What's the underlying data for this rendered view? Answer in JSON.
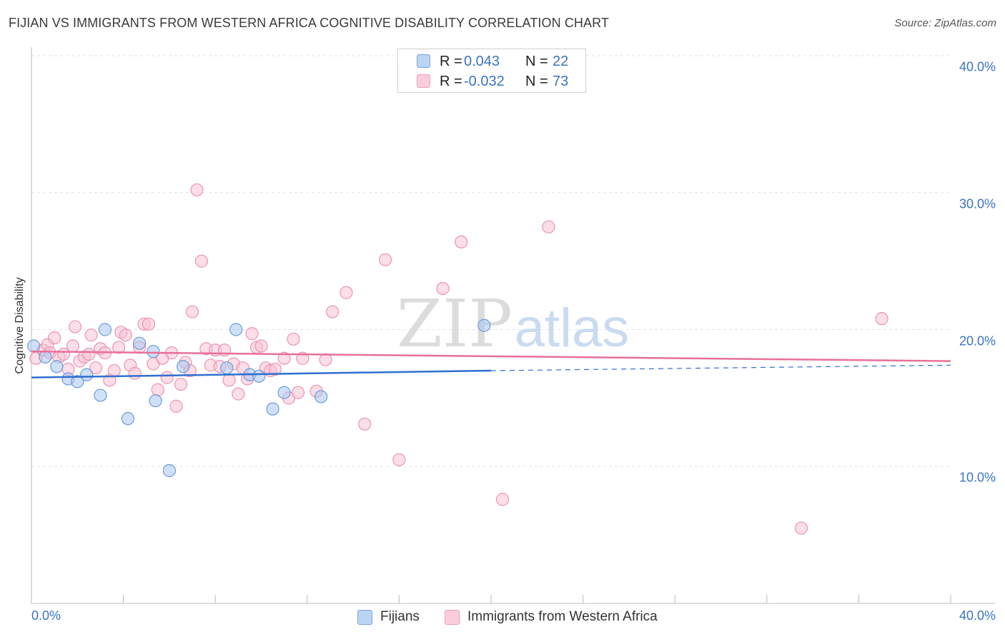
{
  "header": {
    "title": "FIJIAN VS IMMIGRANTS FROM WESTERN AFRICA COGNITIVE DISABILITY CORRELATION CHART",
    "source_prefix": "Source:",
    "source_value": "ZipAtlas.com"
  },
  "watermark": {
    "zip": "ZIP",
    "atlas": "atlas"
  },
  "legend_top": [
    {
      "r_label": "R =",
      "r_value": "0.043",
      "n_label": "N =",
      "n_value": "22"
    },
    {
      "r_label": "R =",
      "r_value": "-0.032",
      "n_label": "N =",
      "n_value": "73"
    }
  ],
  "legend_bottom": [
    {
      "label": "Fijians"
    },
    {
      "label": "Immigrants from Western Africa"
    }
  ],
  "colors": {
    "fijians_fill": "#a9c8f0",
    "fijians_stroke": "#6b9ad8",
    "fijians_line": "#2f6fd0",
    "wa_fill": "#f7c3d4",
    "wa_stroke": "#ec94b2",
    "wa_line": "#e8709a",
    "tick_text": "#3a74c4",
    "grid": "#e3e3e3"
  },
  "chart_data": {
    "type": "scatter",
    "title": "FIJIAN VS IMMIGRANTS FROM WESTERN AFRICA COGNITIVE DISABILITY CORRELATION CHART",
    "xlabel": "",
    "ylabel": "Cognitive Disability",
    "xlim": [
      0,
      40
    ],
    "ylim": [
      0,
      40
    ],
    "x_tick_labels": [
      "0.0%",
      "40.0%"
    ],
    "y_ticks": [
      10,
      20,
      30,
      40
    ],
    "y_tick_labels": [
      "10.0%",
      "20.0%",
      "30.0%",
      "40.0%"
    ],
    "grid": true,
    "legend_position": "bottom",
    "series": [
      {
        "name": "Fijians",
        "r": 0.043,
        "n": 22,
        "trend": {
          "x0": 0,
          "y0": 16.5,
          "x1": 20,
          "y1": 17.0,
          "dashed_to_x": 40,
          "dashed_to_y": 17.4
        },
        "points": [
          [
            0.1,
            18.8
          ],
          [
            0.6,
            18.0
          ],
          [
            1.1,
            17.3
          ],
          [
            1.6,
            16.4
          ],
          [
            2.0,
            16.2
          ],
          [
            2.4,
            16.7
          ],
          [
            3.0,
            15.2
          ],
          [
            3.2,
            20.0
          ],
          [
            4.2,
            13.5
          ],
          [
            4.7,
            19.0
          ],
          [
            5.3,
            18.4
          ],
          [
            5.4,
            14.8
          ],
          [
            6.0,
            9.7
          ],
          [
            6.6,
            17.3
          ],
          [
            8.5,
            17.2
          ],
          [
            8.9,
            20.0
          ],
          [
            9.5,
            16.7
          ],
          [
            9.9,
            16.6
          ],
          [
            10.5,
            14.2
          ],
          [
            11.0,
            15.4
          ],
          [
            12.6,
            15.1
          ],
          [
            19.7,
            20.3
          ]
        ]
      },
      {
        "name": "Immigrants from Western Africa",
        "r": -0.032,
        "n": 73,
        "trend": {
          "x0": 0,
          "y0": 18.4,
          "x1": 40,
          "y1": 17.7
        },
        "points": [
          [
            0.2,
            17.9
          ],
          [
            0.5,
            18.5
          ],
          [
            0.7,
            18.9
          ],
          [
            0.8,
            18.3
          ],
          [
            1.0,
            19.4
          ],
          [
            1.2,
            18.0
          ],
          [
            1.4,
            18.2
          ],
          [
            1.6,
            17.1
          ],
          [
            1.8,
            18.8
          ],
          [
            1.9,
            20.2
          ],
          [
            2.1,
            17.7
          ],
          [
            2.3,
            18.0
          ],
          [
            2.5,
            18.2
          ],
          [
            2.6,
            19.6
          ],
          [
            2.8,
            17.2
          ],
          [
            3.0,
            18.6
          ],
          [
            3.2,
            18.3
          ],
          [
            3.4,
            16.3
          ],
          [
            3.6,
            17.0
          ],
          [
            3.8,
            18.7
          ],
          [
            3.9,
            19.8
          ],
          [
            4.1,
            19.6
          ],
          [
            4.3,
            17.4
          ],
          [
            4.5,
            16.8
          ],
          [
            4.7,
            18.7
          ],
          [
            4.9,
            20.4
          ],
          [
            5.1,
            20.4
          ],
          [
            5.3,
            17.5
          ],
          [
            5.5,
            15.6
          ],
          [
            5.7,
            17.9
          ],
          [
            5.9,
            16.5
          ],
          [
            6.1,
            18.3
          ],
          [
            6.3,
            14.4
          ],
          [
            6.5,
            16.0
          ],
          [
            6.7,
            17.6
          ],
          [
            6.9,
            17.0
          ],
          [
            7.0,
            21.3
          ],
          [
            7.2,
            30.2
          ],
          [
            7.4,
            25.0
          ],
          [
            7.6,
            18.6
          ],
          [
            7.8,
            17.4
          ],
          [
            8.0,
            18.5
          ],
          [
            8.2,
            17.3
          ],
          [
            8.4,
            18.5
          ],
          [
            8.6,
            16.3
          ],
          [
            8.8,
            17.5
          ],
          [
            9.0,
            15.3
          ],
          [
            9.2,
            17.2
          ],
          [
            9.4,
            16.4
          ],
          [
            9.6,
            19.7
          ],
          [
            9.8,
            18.7
          ],
          [
            10.0,
            18.8
          ],
          [
            10.2,
            17.2
          ],
          [
            10.4,
            17.0
          ],
          [
            10.6,
            17.1
          ],
          [
            11.0,
            17.9
          ],
          [
            11.2,
            15.0
          ],
          [
            11.4,
            19.3
          ],
          [
            11.6,
            15.4
          ],
          [
            11.8,
            17.9
          ],
          [
            12.4,
            15.5
          ],
          [
            12.8,
            17.8
          ],
          [
            13.1,
            21.3
          ],
          [
            13.7,
            22.7
          ],
          [
            14.5,
            13.1
          ],
          [
            15.4,
            25.1
          ],
          [
            16.0,
            10.5
          ],
          [
            17.9,
            23.0
          ],
          [
            18.7,
            26.4
          ],
          [
            20.5,
            7.6
          ],
          [
            22.5,
            27.5
          ],
          [
            33.5,
            5.5
          ],
          [
            37.0,
            20.8
          ]
        ]
      }
    ]
  }
}
